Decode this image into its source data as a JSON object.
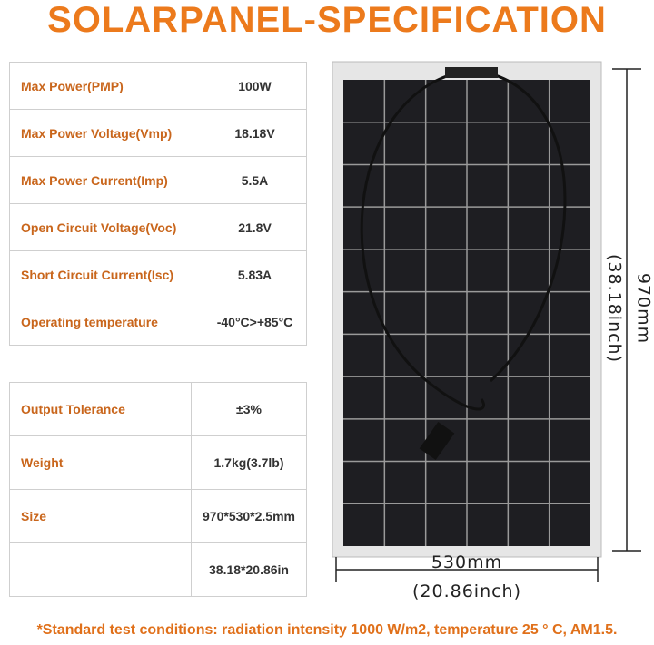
{
  "header": {
    "title": "SOLARPANEL-SPECIFICATION"
  },
  "table1": {
    "rows": [
      {
        "label": "Max Power(PMP)",
        "value": "100W"
      },
      {
        "label": "Max Power Voltage(Vmp)",
        "value": "18.18V"
      },
      {
        "label": "Max Power Current(Imp)",
        "value": "5.5A"
      },
      {
        "label": "Open Circuit Voltage(Voc)",
        "value": "21.8V"
      },
      {
        "label": "Short Circuit Current(Isc)",
        "value": "5.83A"
      },
      {
        "label": "Operating temperature",
        "value": "-40°C>+85°C"
      }
    ]
  },
  "table2": {
    "rows": [
      {
        "label": "Output Tolerance",
        "value": "±3%"
      },
      {
        "label": "Weight",
        "value": "1.7kg(3.7lb)"
      },
      {
        "label": "Size",
        "value": "970*530*2.5mm"
      },
      {
        "value": "38.18*20.86in"
      }
    ]
  },
  "dimensions": {
    "height_mm": "970mm",
    "height_inch": "(38.18inch)",
    "width_mm": "530mm",
    "width_inch": "(20.86inch)"
  },
  "footnote": "*Standard test conditions: radiation intensity 1000 W/m2, temperature 25 ° C, AM1.5."
}
